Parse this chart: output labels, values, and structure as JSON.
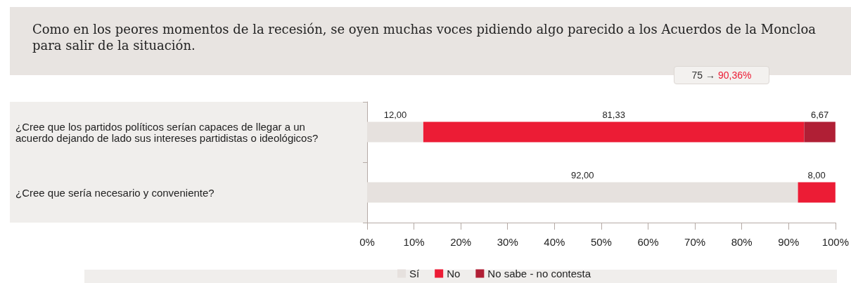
{
  "chart_data": {
    "type": "bar",
    "orientation": "horizontal",
    "stacked": true,
    "title": "Como en los peores momentos de la recesión, se oyen muchas voces pidiendo algo parecido a los Acuerdos de la Moncloa para salir de la situación.",
    "annotations": [
      "75 → 90,36%"
    ],
    "categories": [
      "¿Cree que los partidos políticos serían capaces de llegar a un acuerdo dejando de lado sus intereses partidistas o ideológicos?",
      "¿Cree que sería necesario y conveniente?"
    ],
    "series": [
      {
        "name": "Sí",
        "color": "#e6e1de",
        "values": [
          12,
          92
        ],
        "value_labels": [
          "12,00",
          "92,00"
        ]
      },
      {
        "name": "No",
        "color": "#ec1c35",
        "values": [
          81.33,
          8
        ],
        "value_labels": [
          "81,33",
          "8,00"
        ]
      },
      {
        "name": "No sabe - no contesta",
        "color": "#b01f35",
        "values": [
          6.67,
          null
        ],
        "value_labels": [
          "6,67",
          null
        ]
      }
    ],
    "xlim": [
      0,
      100
    ],
    "xticks": [
      {
        "value": 0,
        "label": "0%"
      },
      {
        "value": 10,
        "label": "10%"
      },
      {
        "value": 20,
        "label": "20%"
      },
      {
        "value": 30,
        "label": "30%"
      },
      {
        "value": 40,
        "label": "40%"
      },
      {
        "value": 50,
        "label": "50%"
      },
      {
        "value": 60,
        "label": "60%"
      },
      {
        "value": 70,
        "label": "70%"
      },
      {
        "value": 80,
        "label": "80%"
      },
      {
        "value": 90,
        "label": "90%"
      },
      {
        "value": 100,
        "label": "100%"
      }
    ],
    "legend": "bottom"
  }
}
